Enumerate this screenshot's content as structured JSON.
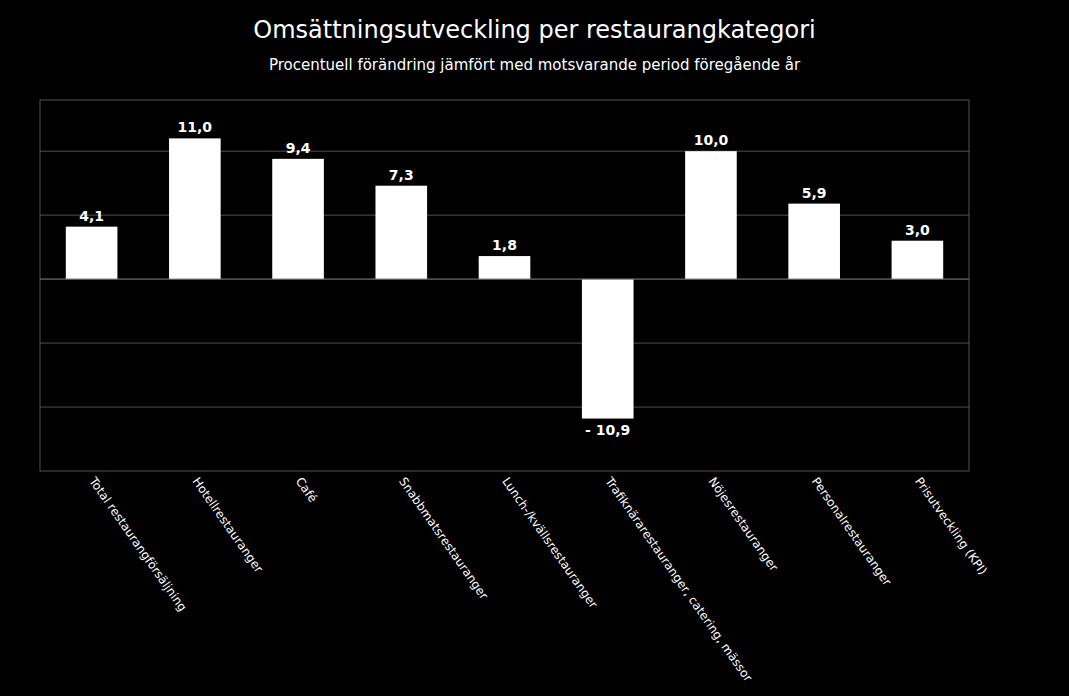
{
  "chart_data": {
    "type": "bar",
    "title": "Omsättningsutveckling per restaurangkategori",
    "subtitle": "Procentuell förändring jämfört med motsvarande period föregående år",
    "categories": [
      "Total restaurangförsäljning",
      "Hotellrestauranger",
      "Café",
      "Snabbmatsrestauranger",
      "Lunch-/kvällsrestauranger",
      "Trafiknärarestauranger, catering, mässor",
      "Nöjesrestauranger",
      "Personalrestauranger",
      "Prisutveckling (KPI)"
    ],
    "values": [
      4.1,
      11.0,
      9.4,
      7.3,
      1.8,
      -10.9,
      10.0,
      5.9,
      3.0
    ],
    "value_labels": [
      "4,1",
      "11,0",
      "9,4",
      "7,3",
      "1,8",
      "- 10,9",
      "10,0",
      "5,9",
      "3,0"
    ],
    "data_labels": true,
    "color": "#ffffff",
    "ylim": [
      -15,
      14
    ],
    "yticks": [
      -10,
      -5,
      0,
      5,
      10
    ],
    "grid": true,
    "tick_labels": "x"
  }
}
